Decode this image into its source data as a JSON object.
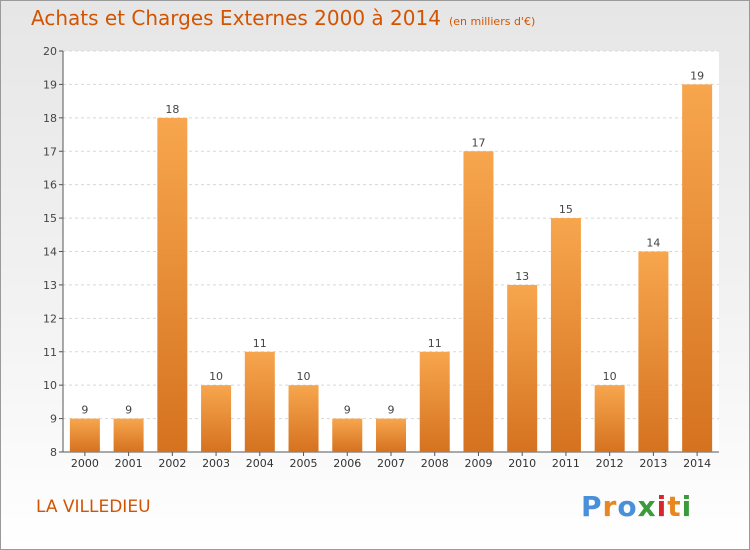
{
  "header": {
    "title": "Achats et Charges Externes 2000 à 2014",
    "unit": "(en milliers d'€)"
  },
  "footer": {
    "commune": "LA VILLEDIEU",
    "logo_text": "Proxiti"
  },
  "colors": {
    "title": "#d35400",
    "bar_top": "#f7a64e",
    "bar_bottom": "#d5721f",
    "logo_letters": [
      "#4a90d9",
      "#e8871e",
      "#4a90d9",
      "#3a9b3a",
      "#d9262e",
      "#e8871e",
      "#3a9b3a"
    ]
  },
  "chart_data": {
    "type": "bar",
    "categories": [
      "2000",
      "2001",
      "2002",
      "2003",
      "2004",
      "2005",
      "2006",
      "2007",
      "2008",
      "2009",
      "2010",
      "2011",
      "2012",
      "2013",
      "2014"
    ],
    "values": [
      9,
      9,
      18,
      10,
      11,
      10,
      9,
      9,
      11,
      17,
      13,
      15,
      10,
      14,
      19
    ],
    "data_labels": [
      "9",
      "9",
      "18",
      "10",
      "11",
      "10",
      "9",
      "9",
      "11",
      "17",
      "13",
      "15",
      "10",
      "14",
      "19"
    ],
    "ylim": [
      8,
      20
    ],
    "yticks": [
      8,
      9,
      10,
      11,
      12,
      13,
      14,
      15,
      16,
      17,
      18,
      19,
      20
    ],
    "grid": true
  }
}
